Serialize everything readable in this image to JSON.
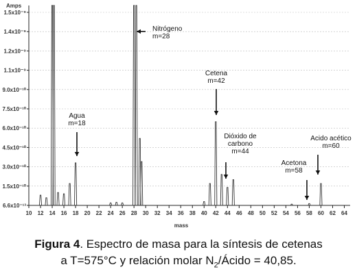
{
  "chart_data": {
    "type": "line",
    "y_unit": "Amps",
    "xlabel": "mass",
    "xlim": [
      10,
      65
    ],
    "ylim": [
      6.6e-13,
      1.6e-09
    ],
    "x_ticks": [
      10,
      12,
      14,
      16,
      18,
      20,
      22,
      24,
      26,
      28,
      30,
      32,
      34,
      36,
      38,
      40,
      42,
      44,
      46,
      48,
      50,
      52,
      54,
      56,
      58,
      60,
      62,
      64
    ],
    "y_ticks": [
      {
        "value": 6.6e-13,
        "label": "6.6x10⁻¹³"
      },
      {
        "value": 1.5e-10,
        "label": "1.5x10⁻¹⁰"
      },
      {
        "value": 3e-10,
        "label": "3.0x10⁻¹⁰"
      },
      {
        "value": 4.5e-10,
        "label": "4.5x10⁻¹⁰"
      },
      {
        "value": 6e-10,
        "label": "6.0x10⁻¹⁰"
      },
      {
        "value": 7.5e-10,
        "label": "7.5x10⁻¹⁰"
      },
      {
        "value": 9e-10,
        "label": "9.0x10⁻¹⁰"
      },
      {
        "value": 1.1e-09,
        "label": "1.1x10⁻⁹"
      },
      {
        "value": 1.2e-09,
        "label": "1.2x10⁻⁹"
      },
      {
        "value": 1.4e-09,
        "label": "1.4x10⁻⁹"
      },
      {
        "value": 1.5e-09,
        "label": "1.5x10⁻⁹"
      }
    ],
    "peaks": [
      {
        "x": 12,
        "y": 8e-11
      },
      {
        "x": 13,
        "y": 6e-11
      },
      {
        "x": 14,
        "y": 1.6e-09
      },
      {
        "x": 14.3,
        "y": 1.6e-09
      },
      {
        "x": 15,
        "y": 1e-10
      },
      {
        "x": 16,
        "y": 9e-11
      },
      {
        "x": 17,
        "y": 1.7e-10
      },
      {
        "x": 18,
        "y": 3.3e-10
      },
      {
        "x": 24,
        "y": 2e-11
      },
      {
        "x": 25,
        "y": 2.5e-11
      },
      {
        "x": 26,
        "y": 2e-11
      },
      {
        "x": 28,
        "y": 1.6e-09
      },
      {
        "x": 28.4,
        "y": 1.6e-09
      },
      {
        "x": 29,
        "y": 5.2e-10
      },
      {
        "x": 29.3,
        "y": 3.4e-10
      },
      {
        "x": 40,
        "y": 3e-11
      },
      {
        "x": 41,
        "y": 1.7e-10
      },
      {
        "x": 42,
        "y": 6.5e-10
      },
      {
        "x": 43,
        "y": 2.4e-10
      },
      {
        "x": 44,
        "y": 1.4e-10
      },
      {
        "x": 45,
        "y": 2e-10
      },
      {
        "x": 55,
        "y": 1e-11
      },
      {
        "x": 58,
        "y": 1.5e-11
      },
      {
        "x": 60,
        "y": 1.7e-10
      }
    ],
    "annotations": [
      {
        "lines": [
          "Agua",
          "m=18"
        ],
        "x": 18
      },
      {
        "lines": [
          "Nitrógeno",
          "m=28"
        ],
        "x": 28
      },
      {
        "lines": [
          "Cetena",
          "m=42"
        ],
        "x": 42
      },
      {
        "lines": [
          "Dióxido de",
          "carbono",
          "m=44"
        ],
        "x": 44
      },
      {
        "lines": [
          "Acetona",
          "m=58"
        ],
        "x": 58
      },
      {
        "lines": [
          "Acido acético",
          "m=60"
        ],
        "x": 60
      }
    ]
  },
  "caption": {
    "figure_label": "Figura 4",
    "line1_rest": ". Espectro de masa para la síntesis de cetenas",
    "line2_a": "a T=575°C y  relación molar N",
    "line2_sub": "2",
    "line2_b": "/Ácido = 40,85."
  }
}
